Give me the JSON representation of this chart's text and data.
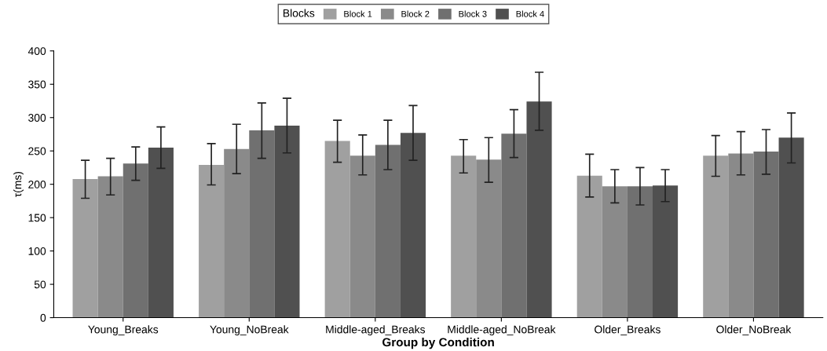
{
  "chart_data": {
    "type": "bar",
    "xlabel": "Group by Condition",
    "ylabel": "τ(ms)",
    "legend_title": "Blocks",
    "legend": "top",
    "grid": false,
    "categories": [
      "Young_Breaks",
      "Young_NoBreak",
      "Middle-aged_Breaks",
      "Middle-aged_NoBreak",
      "Older_Breaks",
      "Older_NoBreak"
    ],
    "ylim": [
      0,
      400
    ],
    "yticks": [
      0,
      50,
      100,
      150,
      200,
      250,
      300,
      350,
      400
    ],
    "series": [
      {
        "name": "Block 1",
        "color": "#a0a0a0",
        "values": [
          208,
          229,
          265,
          243,
          213,
          243
        ],
        "errors": [
          [
            179,
            236
          ],
          [
            199,
            261
          ],
          [
            233,
            296
          ],
          [
            217,
            267
          ],
          [
            181,
            245
          ],
          [
            212,
            273
          ]
        ]
      },
      {
        "name": "Block 2",
        "color": "#8a8a8a",
        "values": [
          212,
          253,
          243,
          237,
          197,
          246
        ],
        "errors": [
          [
            184,
            239
          ],
          [
            216,
            290
          ],
          [
            214,
            274
          ],
          [
            203,
            270
          ],
          [
            172,
            222
          ],
          [
            214,
            279
          ]
        ]
      },
      {
        "name": "Block 3",
        "color": "#707070",
        "values": [
          231,
          281,
          259,
          276,
          197,
          249
        ],
        "errors": [
          [
            206,
            256
          ],
          [
            239,
            322
          ],
          [
            222,
            296
          ],
          [
            240,
            312
          ],
          [
            169,
            225
          ],
          [
            215,
            282
          ]
        ]
      },
      {
        "name": "Block 4",
        "color": "#505050",
        "values": [
          255,
          288,
          277,
          324,
          198,
          270
        ],
        "errors": [
          [
            224,
            286
          ],
          [
            247,
            329
          ],
          [
            236,
            318
          ],
          [
            281,
            368
          ],
          [
            174,
            222
          ],
          [
            232,
            307
          ]
        ]
      }
    ]
  }
}
